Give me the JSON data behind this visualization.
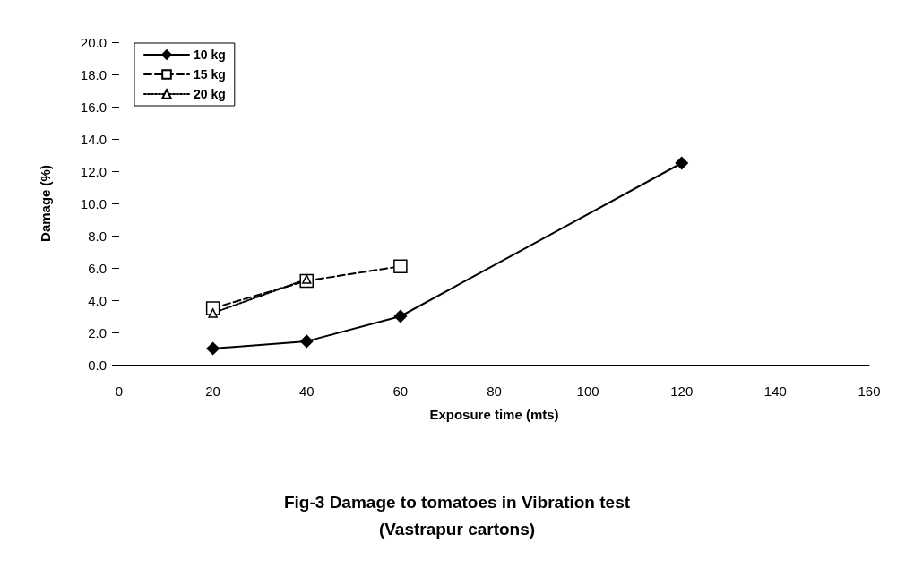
{
  "chart_data": {
    "type": "line",
    "title": "Fig-3 Damage to tomatoes in Vibration test\n(Vastrapur cartons)",
    "xlabel": "Exposure time (mts)",
    "ylabel": "Damage (%)",
    "series": [
      {
        "name": "10 kg",
        "color": "#000000",
        "x": [
          20,
          40,
          60,
          120
        ],
        "values": [
          1.0,
          1.45,
          3.0,
          12.5
        ],
        "marker": "diamond",
        "line_style": "solid"
      },
      {
        "name": "15 kg",
        "color": "#000000",
        "x": [
          20,
          40,
          60
        ],
        "values": [
          3.5,
          5.2,
          6.1
        ],
        "marker": "square",
        "line_style": "dashed"
      },
      {
        "name": "20 kg",
        "color": "#000000",
        "x": [
          20,
          40
        ],
        "values": [
          3.2,
          5.3
        ],
        "marker": "triangle",
        "line_style": "dotted"
      }
    ],
    "xlim": [
      0,
      160
    ],
    "xticks": [
      0,
      20,
      40,
      60,
      80,
      100,
      120,
      140,
      160
    ],
    "ylim": [
      0,
      20
    ],
    "yticks": [
      {
        "value": 0,
        "label": "0.0"
      },
      {
        "value": 2,
        "label": "2.0"
      },
      {
        "value": 4,
        "label": "4.0"
      },
      {
        "value": 6,
        "label": "6.0"
      },
      {
        "value": 8,
        "label": "8.0"
      },
      {
        "value": 10,
        "label": "10.0"
      },
      {
        "value": 12,
        "label": "12.0"
      },
      {
        "value": 14,
        "label": "14.0"
      },
      {
        "value": 16,
        "label": "16.0"
      },
      {
        "value": 18,
        "label": "18.0"
      },
      {
        "value": 20,
        "label": "20.0"
      }
    ],
    "grid": false,
    "legend": "top left"
  }
}
